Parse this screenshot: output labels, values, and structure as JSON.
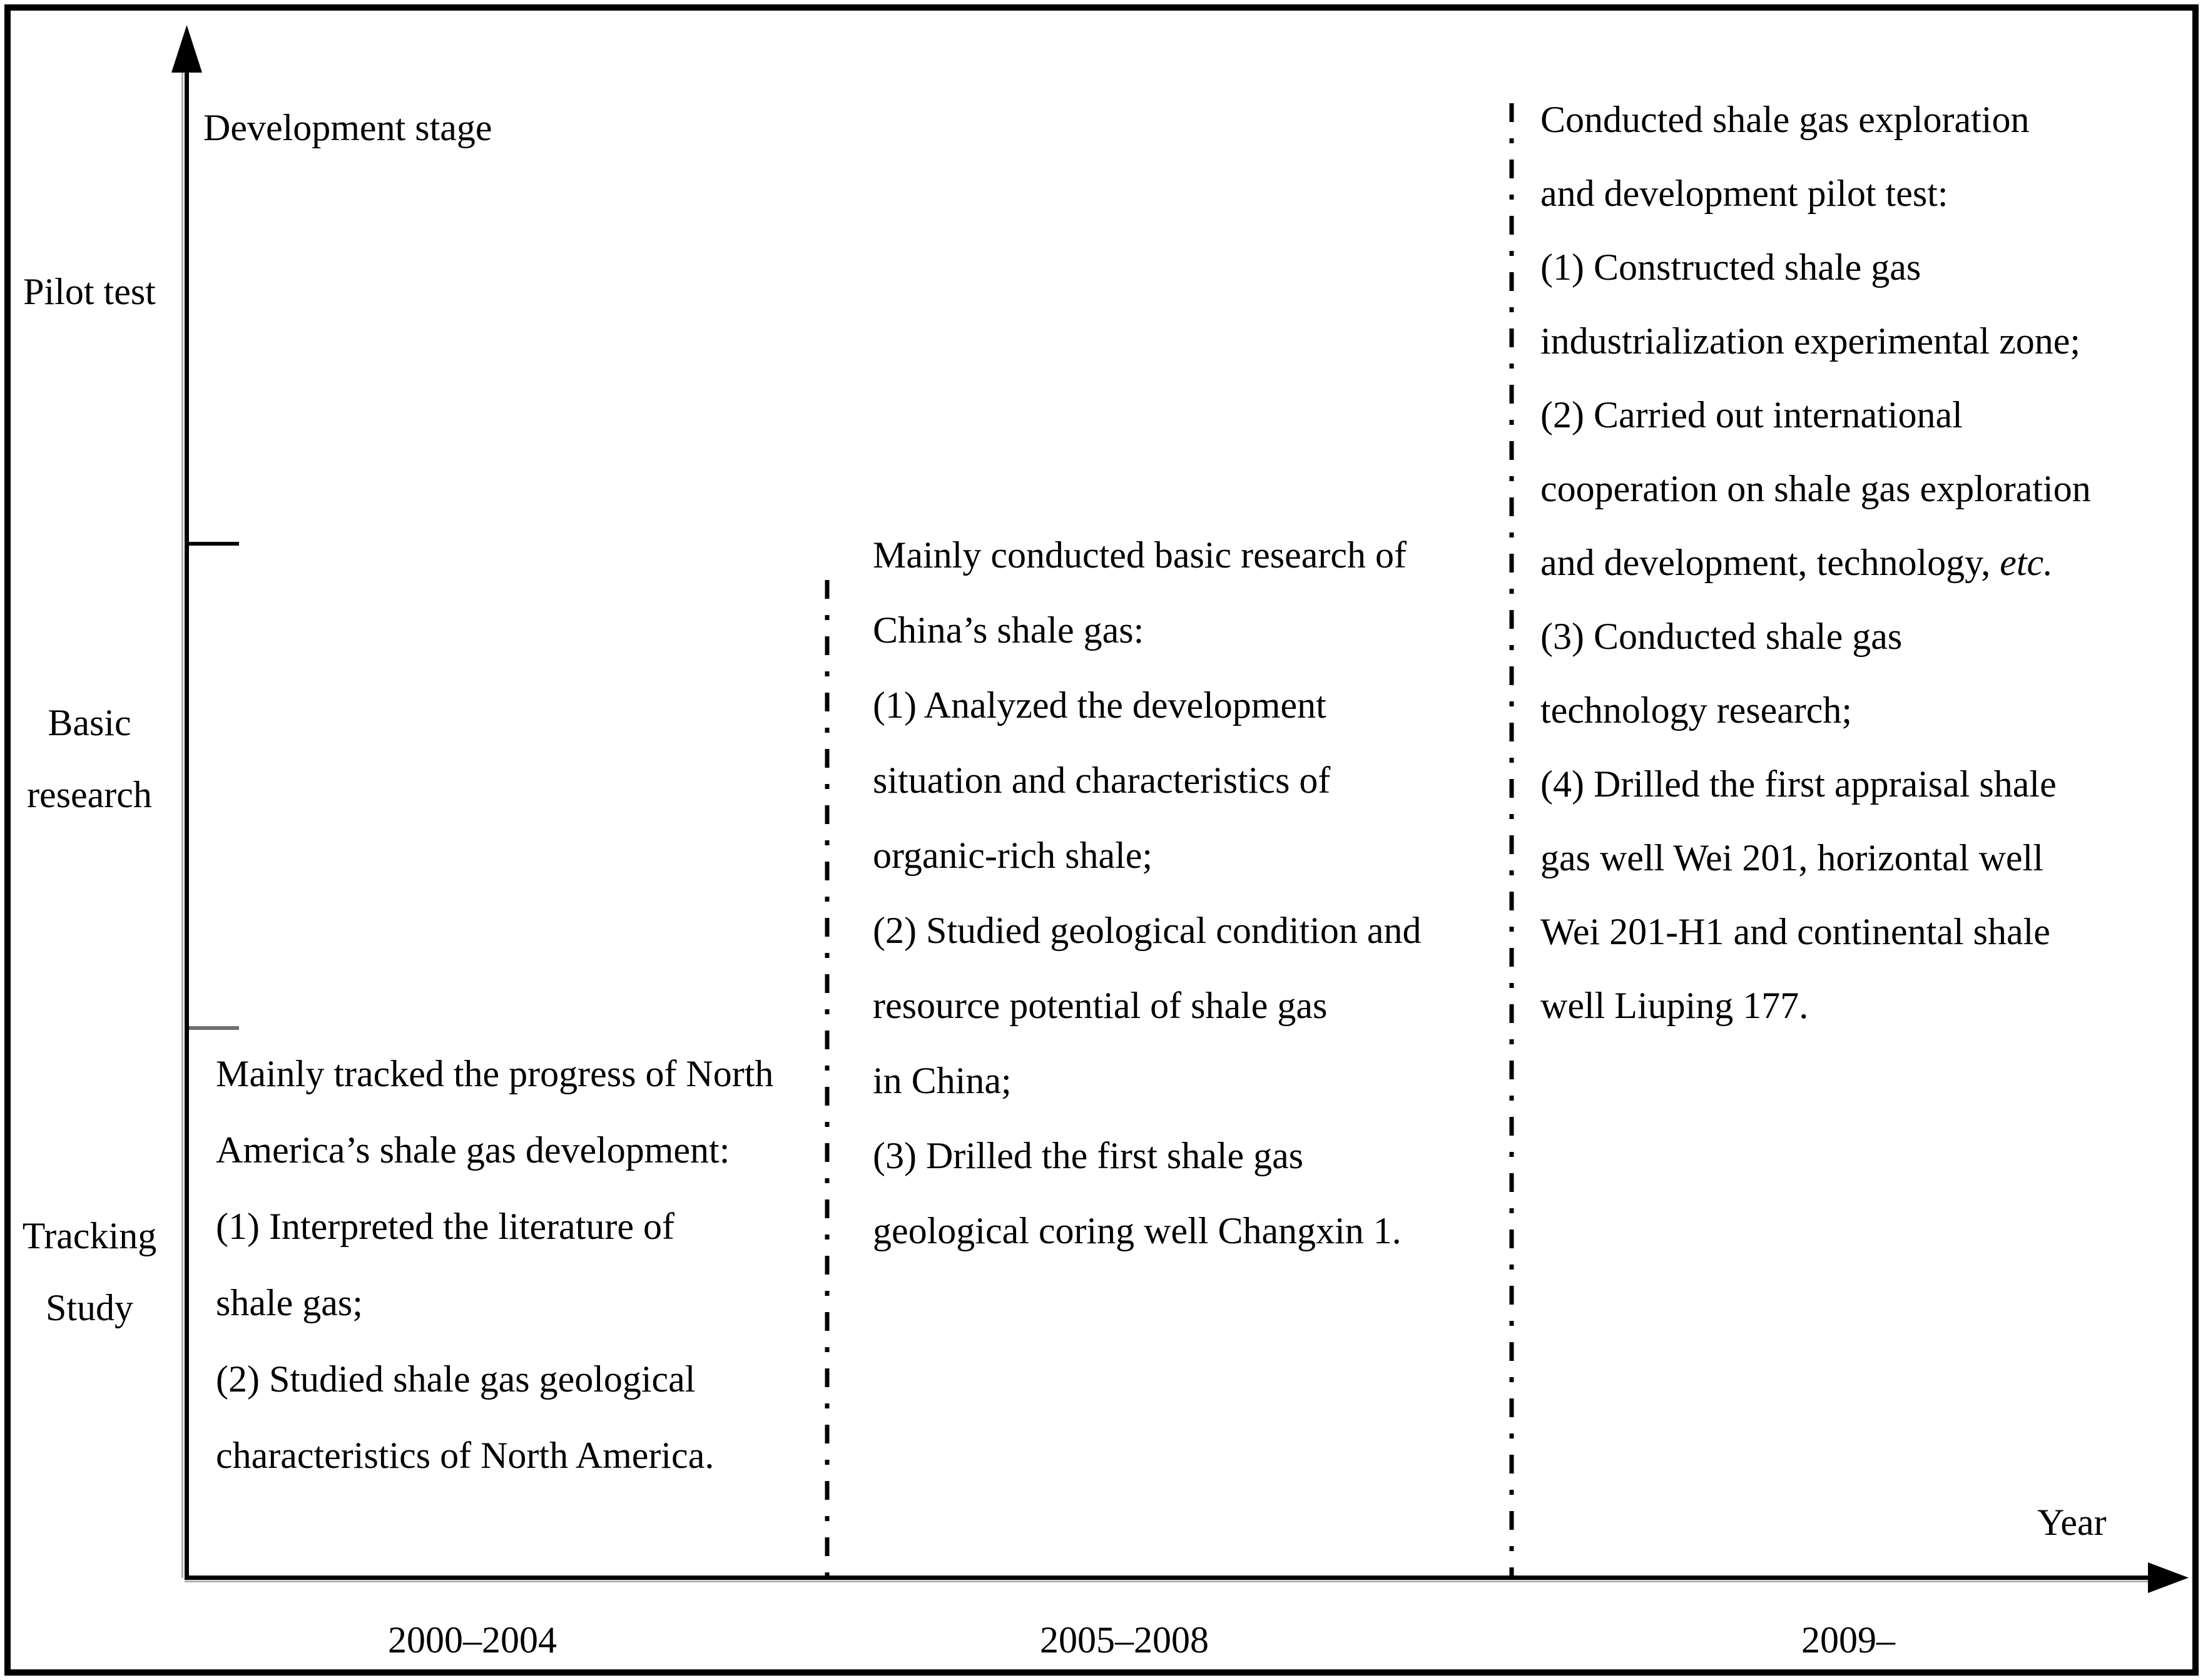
{
  "colors": {
    "ink": "#000000",
    "background": "#ffffff",
    "axis_shadow": "#b0b0b0"
  },
  "y_axis": {
    "title": "Development stage",
    "stage_labels": {
      "pilot_test": [
        "Pilot test"
      ],
      "basic_research": [
        "Basic",
        "research"
      ],
      "tracking_study": [
        "Tracking",
        "Study"
      ]
    }
  },
  "x_axis": {
    "title": "Year",
    "period_labels": {
      "period1": "2000–2004",
      "period2": "2005–2008",
      "period3": "2009–"
    }
  },
  "blocks": {
    "period1": {
      "lines": [
        "Mainly tracked the progress of North",
        "America’s shale gas development:",
        "(1) Interpreted the literature of",
        "shale gas;",
        "(2) Studied shale gas geological",
        "characteristics of North America."
      ]
    },
    "period2": {
      "lines": [
        "Mainly conducted basic research of",
        "China’s shale gas:",
        "(1) Analyzed the development",
        "situation and characteristics of",
        "organic-rich shale;",
        "(2) Studied geological condition and",
        "resource potential of shale gas",
        "in China;",
        "(3) Drilled the first shale gas",
        "geological coring well Changxin 1."
      ]
    },
    "period3": {
      "lines": [
        "Conducted shale gas exploration",
        "and development pilot test:",
        "(1) Constructed shale gas",
        "industrialization experimental zone;",
        "(2) Carried out international",
        "cooperation on shale gas exploration",
        {
          "text": "and development, technology, ",
          "italic": "etc."
        },
        "(3) Conducted shale gas",
        "technology research;",
        "(4) Drilled the first appraisal shale",
        "gas well Wei 201, horizontal well",
        "Wei 201-H1 and continental shale",
        "well Liuping 177."
      ]
    }
  }
}
